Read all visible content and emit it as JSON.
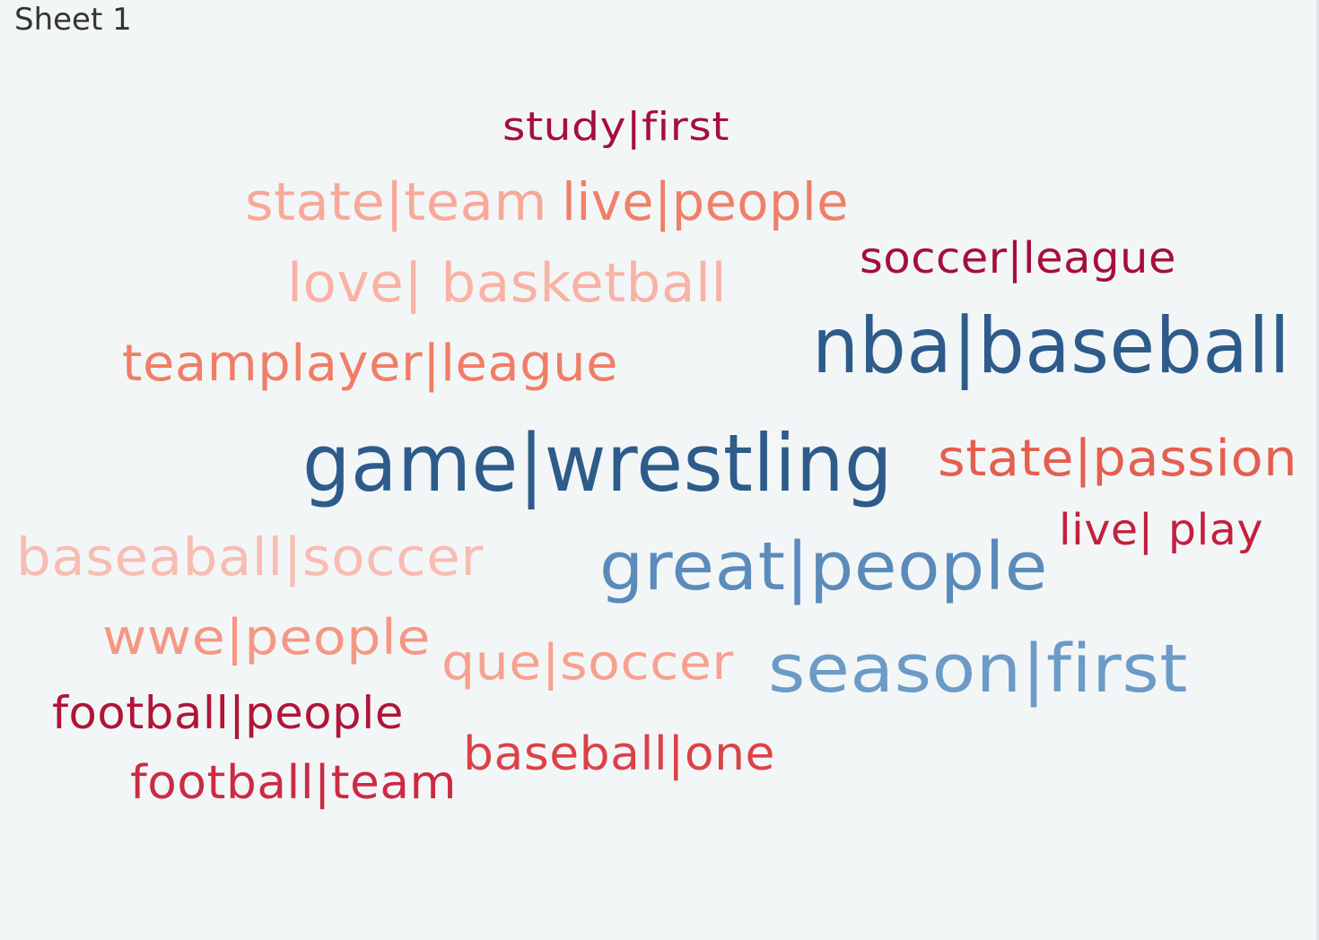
{
  "sheet": {
    "title": "Sheet 1"
  },
  "chart_data": {
    "type": "word-cloud",
    "title": "",
    "words": [
      {
        "text": "study|first",
        "color": "#a50f3a"
      },
      {
        "text": "state|team",
        "color": "#f8a898"
      },
      {
        "text": "live|people",
        "color": "#f07f68"
      },
      {
        "text": "soccer|league",
        "color": "#a50f3a"
      },
      {
        "text": "love| basketball",
        "color": "#f9b2a6"
      },
      {
        "text": "nba|baseball",
        "color": "#2d5c8a"
      },
      {
        "text": "teamplayer|league",
        "color": "#f07e66"
      },
      {
        "text": "game|wrestling",
        "color": "#2d5c8a"
      },
      {
        "text": "state|passion",
        "color": "#e55e4e"
      },
      {
        "text": "live| play",
        "color": "#c2203f"
      },
      {
        "text": "baseaball|soccer",
        "color": "#f8bcb2"
      },
      {
        "text": "great|people",
        "color": "#5a8bbb"
      },
      {
        "text": "wwe|people",
        "color": "#f59883"
      },
      {
        "text": "que|soccer",
        "color": "#f7a18f"
      },
      {
        "text": "season|first",
        "color": "#6b9bc6"
      },
      {
        "text": "football|people",
        "color": "#b01538"
      },
      {
        "text": "baseball|one",
        "color": "#dc4148"
      },
      {
        "text": "football|team",
        "color": "#cc2a44"
      }
    ]
  }
}
